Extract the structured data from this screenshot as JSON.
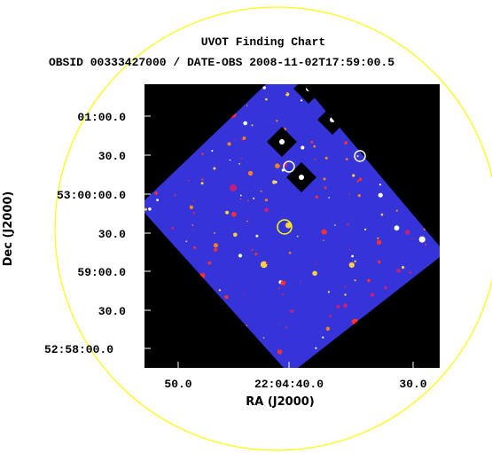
{
  "header": {
    "title": "UVOT Finding Chart",
    "subtitle": "OBSID 00333427000 / DATE-OBS 2008-11-02T17:59:00.5"
  },
  "axes": {
    "x_label": "RA (J2000)",
    "y_label": "Dec (J2000)",
    "x_ticks": [
      "50.0",
      "22:04:40.0",
      "30.0"
    ],
    "y_ticks": [
      "01:00.0",
      "30.0",
      "53:00:00.0",
      "30.0",
      "59:00.0",
      "30.0",
      "52:58:00.0"
    ]
  }
}
